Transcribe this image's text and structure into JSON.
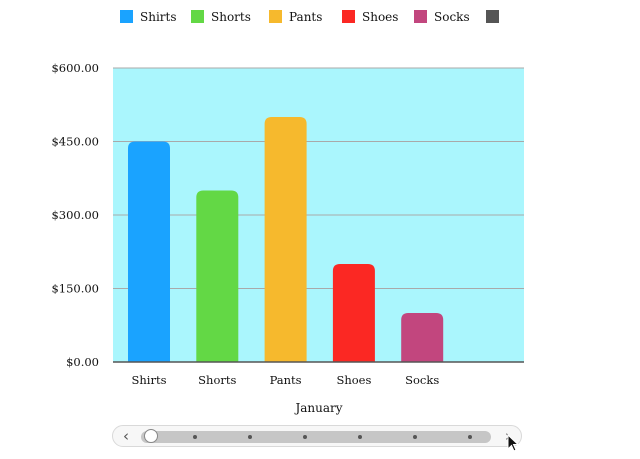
{
  "chart_data": {
    "type": "bar",
    "title": "",
    "categories": [
      "Shirts",
      "Shorts",
      "Pants",
      "Shoes",
      "Socks"
    ],
    "values": [
      450,
      350,
      500,
      200,
      100
    ],
    "colors": [
      "#1aa3ff",
      "#63d845",
      "#f6b92d",
      "#fb2823",
      "#c2467e"
    ],
    "xlabel": "January",
    "ylabel": "",
    "ylim": [
      0,
      600
    ],
    "yticks": [
      0,
      150,
      300,
      450,
      600
    ],
    "ytick_labels": [
      "$0.00",
      "$150.00",
      "$300.00",
      "$450.00",
      "$600.00"
    ],
    "grid": true,
    "plot_background": "#aaf6fd",
    "legend": {
      "position": "top",
      "entries": [
        {
          "name": "Shirts",
          "color": "#1aa3ff"
        },
        {
          "name": "Shorts",
          "color": "#63d845"
        },
        {
          "name": "Pants",
          "color": "#f6b92d"
        },
        {
          "name": "Shoes",
          "color": "#fb2823"
        },
        {
          "name": "Socks",
          "color": "#c2467e"
        },
        {
          "name": "",
          "color": "#555555"
        }
      ]
    }
  },
  "scroller": {
    "left_arrow": "‹",
    "right_arrow": "›",
    "dots": 6
  }
}
